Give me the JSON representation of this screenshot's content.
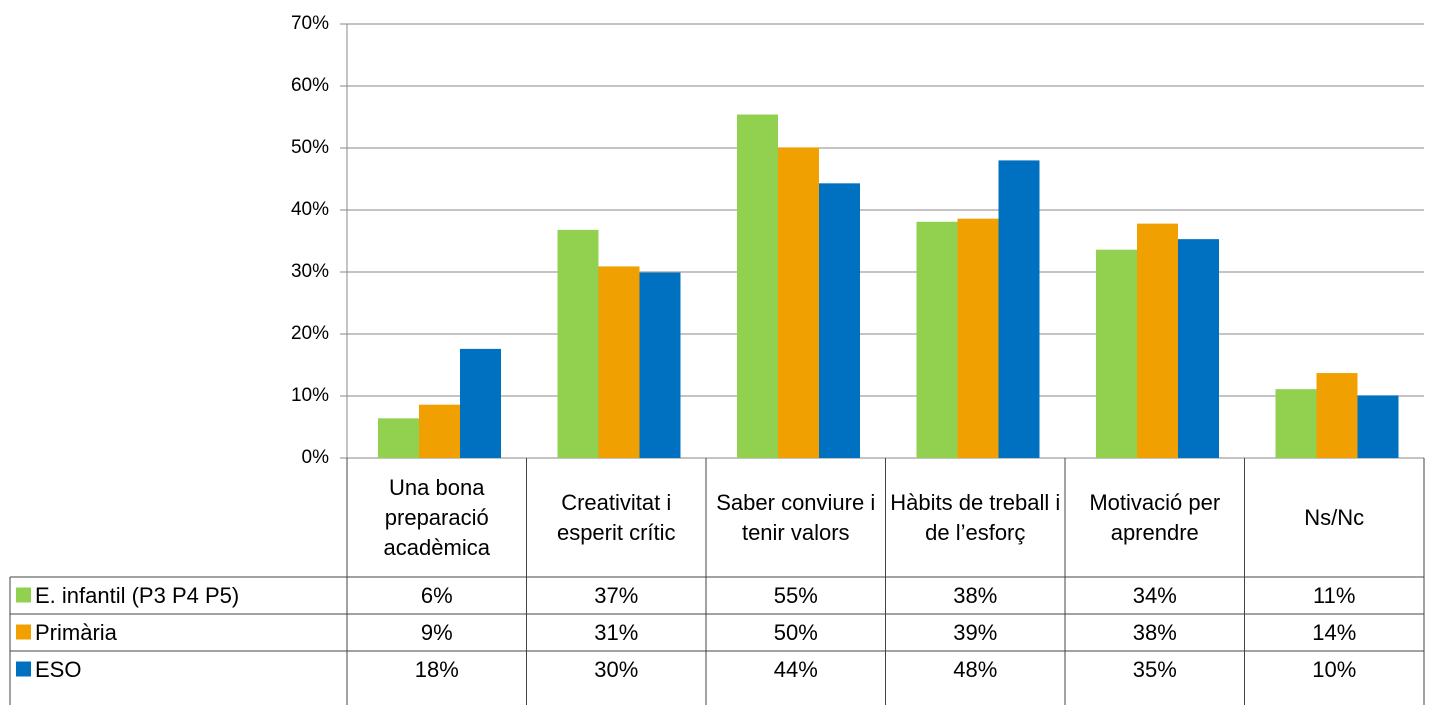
{
  "chart_data": {
    "type": "bar",
    "categories": [
      "Una bona preparació acadèmica",
      "Creativitat i esperit crític",
      "Saber conviure i tenir valors",
      "Hàbits de treball i de l’esforç",
      "Motivació per aprendre",
      "Ns/Nc"
    ],
    "series": [
      {
        "name": "E. infantil (P3 P4 P5)",
        "color": "#92d050",
        "values": [
          6.4,
          36.8,
          55.4,
          38.1,
          33.6,
          11.1
        ],
        "value_labels": [
          "6%",
          "37%",
          "55%",
          "38%",
          "34%",
          "11%"
        ]
      },
      {
        "name": "Primària",
        "color": "#f0a000",
        "values": [
          8.6,
          30.9,
          50.1,
          38.6,
          37.8,
          13.7
        ],
        "value_labels": [
          "9%",
          "31%",
          "50%",
          "39%",
          "38%",
          "14%"
        ]
      },
      {
        "name": "ESO",
        "color": "#0070c0",
        "values": [
          17.6,
          29.9,
          44.3,
          48.0,
          35.3,
          10.1
        ],
        "value_labels": [
          "18%",
          "30%",
          "44%",
          "48%",
          "35%",
          "10%"
        ]
      }
    ],
    "ylim": [
      0,
      70
    ],
    "yticks": [
      {
        "value": 0,
        "label": "0%"
      },
      {
        "value": 10,
        "label": "10%"
      },
      {
        "value": 20,
        "label": "20%"
      },
      {
        "value": 30,
        "label": "30%"
      },
      {
        "value": 40,
        "label": "40%"
      },
      {
        "value": 50,
        "label": "50%"
      },
      {
        "value": 60,
        "label": "60%"
      },
      {
        "value": 70,
        "label": "70%"
      }
    ],
    "grid": true
  }
}
